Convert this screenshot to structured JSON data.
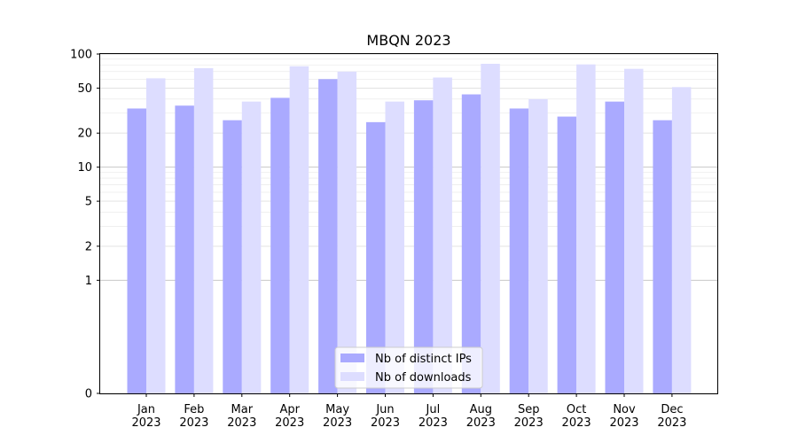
{
  "chart_data": {
    "type": "bar",
    "title": "MBQN 2023",
    "xlabel": "",
    "ylabel": "",
    "yscale": "symlog",
    "ylim": [
      0,
      100
    ],
    "yticks": [
      {
        "value": 0,
        "label": "0"
      },
      {
        "value": 1,
        "label": "1"
      },
      {
        "value": 2,
        "label": "2"
      },
      {
        "value": 5,
        "label": "5"
      },
      {
        "value": 10,
        "label": "10"
      },
      {
        "value": 20,
        "label": "20"
      },
      {
        "value": 50,
        "label": "50"
      },
      {
        "value": 100,
        "label": "100"
      }
    ],
    "categories": [
      {
        "month": "Jan",
        "year": "2023"
      },
      {
        "month": "Feb",
        "year": "2023"
      },
      {
        "month": "Mar",
        "year": "2023"
      },
      {
        "month": "Apr",
        "year": "2023"
      },
      {
        "month": "May",
        "year": "2023"
      },
      {
        "month": "Jun",
        "year": "2023"
      },
      {
        "month": "Jul",
        "year": "2023"
      },
      {
        "month": "Aug",
        "year": "2023"
      },
      {
        "month": "Sep",
        "year": "2023"
      },
      {
        "month": "Oct",
        "year": "2023"
      },
      {
        "month": "Nov",
        "year": "2023"
      },
      {
        "month": "Dec",
        "year": "2023"
      }
    ],
    "series": [
      {
        "name": "Nb of distinct IPs",
        "color": "#aaaaff",
        "values": [
          33,
          35,
          26,
          41,
          60,
          25,
          39,
          44,
          33,
          28,
          38,
          26
        ]
      },
      {
        "name": "Nb of downloads",
        "color": "#ddddff",
        "values": [
          61,
          75,
          38,
          78,
          70,
          38,
          62,
          82,
          40,
          81,
          74,
          51
        ]
      }
    ],
    "grid": true,
    "legend_position": "bottom-center"
  }
}
